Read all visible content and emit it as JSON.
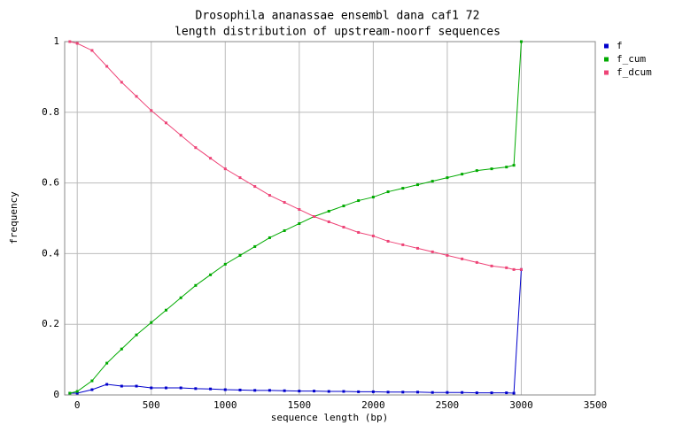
{
  "chart_data": {
    "type": "line",
    "title": "Drosophila ananassae ensembl dana caf1 72",
    "subtitle": "length distribution of upstream-noorf sequences",
    "x_label": "sequence length (bp)",
    "y_label": "frequency",
    "x": [
      -50,
      0,
      100,
      200,
      300,
      400,
      500,
      600,
      700,
      800,
      900,
      1000,
      1100,
      1200,
      1300,
      1400,
      1500,
      1600,
      1700,
      1800,
      1900,
      2000,
      2100,
      2200,
      2300,
      2400,
      2500,
      2600,
      2700,
      2800,
      2900,
      2950,
      3000
    ],
    "series": [
      {
        "name": "f",
        "color": "#0000cc",
        "values": [
          0.005,
          0.005,
          0.015,
          0.03,
          0.025,
          0.025,
          0.02,
          0.02,
          0.02,
          0.018,
          0.017,
          0.015,
          0.014,
          0.013,
          0.013,
          0.012,
          0.011,
          0.011,
          0.01,
          0.01,
          0.009,
          0.009,
          0.008,
          0.008,
          0.008,
          0.007,
          0.007,
          0.007,
          0.006,
          0.006,
          0.006,
          0.005,
          0.355
        ]
      },
      {
        "name": "f_cum",
        "color": "#00aa00",
        "values": [
          0.005,
          0.01,
          0.04,
          0.09,
          0.13,
          0.17,
          0.205,
          0.24,
          0.275,
          0.31,
          0.34,
          0.37,
          0.395,
          0.42,
          0.445,
          0.465,
          0.485,
          0.505,
          0.52,
          0.535,
          0.55,
          0.56,
          0.575,
          0.585,
          0.595,
          0.605,
          0.615,
          0.625,
          0.635,
          0.64,
          0.645,
          0.65,
          1
        ]
      },
      {
        "name": "f_dcum",
        "color": "#ee4477",
        "values": [
          1,
          0.995,
          0.975,
          0.93,
          0.885,
          0.845,
          0.805,
          0.77,
          0.735,
          0.7,
          0.67,
          0.64,
          0.615,
          0.59,
          0.565,
          0.545,
          0.525,
          0.505,
          0.49,
          0.475,
          0.46,
          0.45,
          0.435,
          0.425,
          0.415,
          0.405,
          0.395,
          0.385,
          0.375,
          0.365,
          0.36,
          0.355,
          0.355
        ]
      }
    ],
    "xlim": [
      -85,
      3500
    ],
    "ylim": [
      0,
      1
    ],
    "xticks": [
      0,
      500,
      1000,
      1500,
      2000,
      2500,
      3000,
      3500
    ],
    "yticks": [
      0,
      0.2,
      0.4,
      0.6,
      0.8,
      1
    ],
    "grid": true,
    "legend": "top-right"
  }
}
